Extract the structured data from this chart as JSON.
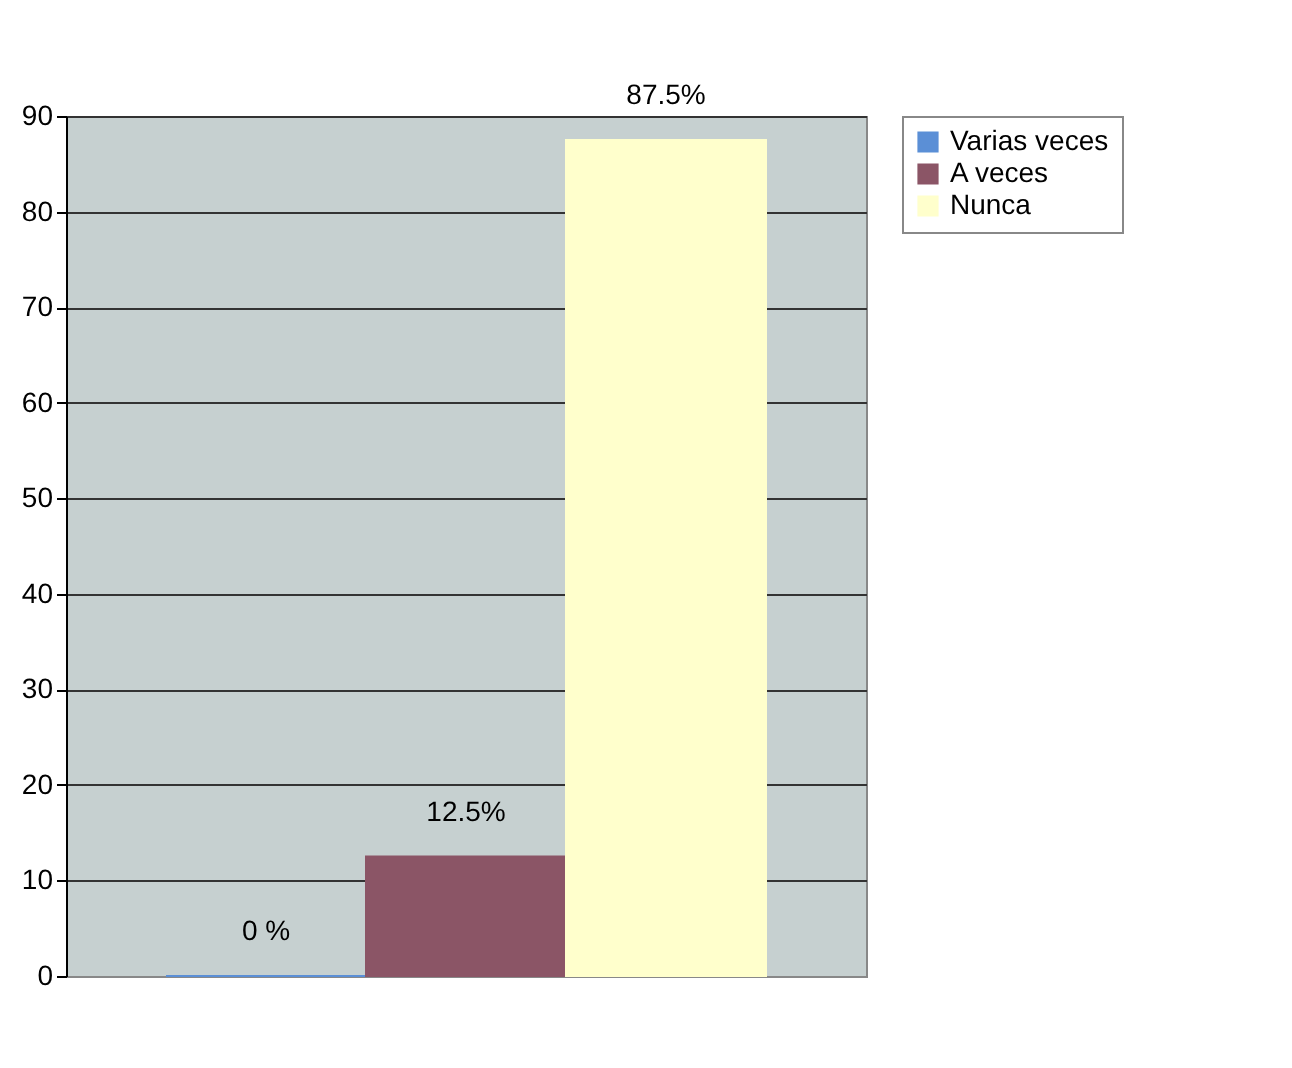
{
  "chart_data": {
    "type": "bar",
    "categories": [
      null
    ],
    "series": [
      {
        "name": "Varias veces",
        "color": "#5b8fd6",
        "values": [
          0
        ],
        "value_labels": [
          "0 %"
        ]
      },
      {
        "name": "A veces",
        "color": "#8b5566",
        "values": [
          12.5
        ],
        "value_labels": [
          "12.5%"
        ]
      },
      {
        "name": "Nunca",
        "color": "#ffffcc",
        "values": [
          87.5
        ],
        "value_labels": [
          "87.5%"
        ]
      }
    ],
    "ylim": [
      0,
      90
    ],
    "yticks": [
      0,
      10,
      20,
      30,
      40,
      50,
      60,
      70,
      80,
      90
    ],
    "grid": "y",
    "legend": "right"
  }
}
